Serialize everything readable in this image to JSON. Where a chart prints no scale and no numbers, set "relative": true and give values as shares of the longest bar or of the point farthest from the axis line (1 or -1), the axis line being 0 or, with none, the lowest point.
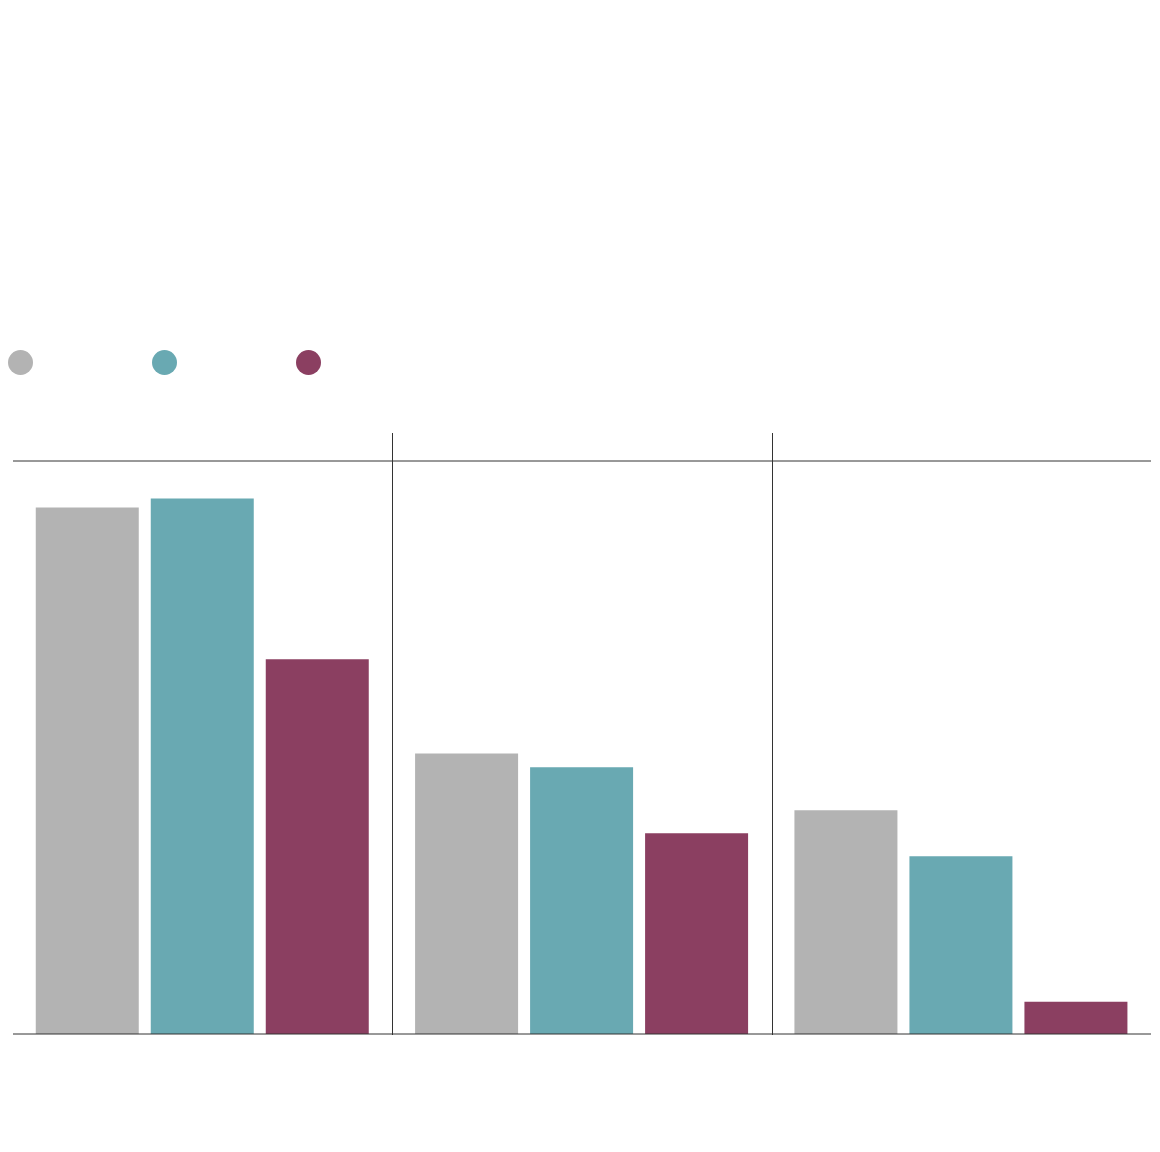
{
  "chart_data": {
    "type": "bar",
    "relative": true,
    "categories": [
      null,
      null,
      null
    ],
    "series": [
      {
        "color": "#b3b3b3",
        "values": [
          0.983,
          0.524,
          0.418
        ]
      },
      {
        "color": "#69a9b2",
        "values": [
          1,
          0.498,
          0.332
        ]
      },
      {
        "color": "#8b3f61",
        "values": [
          0.7,
          0.375,
          0.06
        ]
      }
    ],
    "ref_lines": [
      {
        "axis": "y",
        "value": 1.07,
        "color": "#333333"
      }
    ]
  }
}
